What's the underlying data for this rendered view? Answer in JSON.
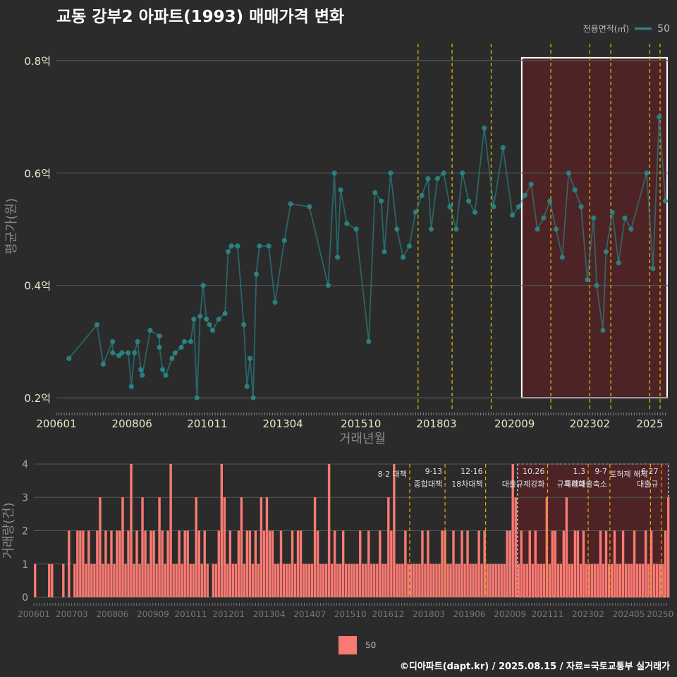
{
  "title": "교동 강부2 아파트(1993) 매매가격 변화",
  "legend": {
    "title": "전용면적(㎡)",
    "value": "50",
    "bar_label": "50"
  },
  "credit": "©디아파트(dapt.kr) / 2025.08.15 / 자료=국토교통부 실거래가",
  "colors": {
    "line": "#2a8c8c",
    "bar": "#f87a72",
    "policy_line": "#e6c300",
    "highlight": "#5a2226"
  },
  "chart_data": [
    {
      "type": "line",
      "ylabel": "평균가(원)",
      "xlabel": "거래년월",
      "x_ticks": [
        "200601",
        "200806",
        "201011",
        "201304",
        "201510",
        "201803",
        "202009",
        "202302",
        "2025"
      ],
      "y_ticks": [
        "0.2억",
        "0.4억",
        "0.6억",
        "0.8억"
      ],
      "ylim": [
        0.18,
        0.83
      ],
      "xlim": [
        2006.0,
        2025.6
      ],
      "grid": true,
      "highlight_range": {
        "x": [
          2020.9,
          2025.6
        ],
        "y": [
          0.2,
          0.805
        ]
      },
      "policy_lines": [
        2017.58,
        2018.67,
        2019.92,
        2021.83,
        2023.08,
        2023.75,
        2025.0,
        2025.33
      ],
      "series": [
        {
          "name": "50",
          "points": [
            [
              2006.4,
              0.27
            ],
            [
              2007.3,
              0.33
            ],
            [
              2007.5,
              0.26
            ],
            [
              2007.8,
              0.3
            ],
            [
              2007.8,
              0.28
            ],
            [
              2008.0,
              0.275
            ],
            [
              2008.1,
              0.28
            ],
            [
              2008.3,
              0.28
            ],
            [
              2008.4,
              0.22
            ],
            [
              2008.5,
              0.28
            ],
            [
              2008.6,
              0.3
            ],
            [
              2008.7,
              0.25
            ],
            [
              2008.75,
              0.24
            ],
            [
              2009.0,
              0.32
            ],
            [
              2009.3,
              0.31
            ],
            [
              2009.3,
              0.29
            ],
            [
              2009.4,
              0.25
            ],
            [
              2009.5,
              0.24
            ],
            [
              2009.7,
              0.27
            ],
            [
              2009.8,
              0.28
            ],
            [
              2010.0,
              0.29
            ],
            [
              2010.1,
              0.3
            ],
            [
              2010.3,
              0.3
            ],
            [
              2010.4,
              0.34
            ],
            [
              2010.5,
              0.2
            ],
            [
              2010.6,
              0.345
            ],
            [
              2010.7,
              0.4
            ],
            [
              2010.8,
              0.34
            ],
            [
              2010.9,
              0.33
            ],
            [
              2011.0,
              0.32
            ],
            [
              2011.2,
              0.34
            ],
            [
              2011.4,
              0.35
            ],
            [
              2011.5,
              0.46
            ],
            [
              2011.6,
              0.47
            ],
            [
              2011.8,
              0.47
            ],
            [
              2012.0,
              0.33
            ],
            [
              2012.1,
              0.22
            ],
            [
              2012.2,
              0.27
            ],
            [
              2012.3,
              0.2
            ],
            [
              2012.4,
              0.42
            ],
            [
              2012.5,
              0.47
            ],
            [
              2012.8,
              0.47
            ],
            [
              2013.0,
              0.37
            ],
            [
              2013.3,
              0.48
            ],
            [
              2013.5,
              0.545
            ],
            [
              2014.1,
              0.54
            ],
            [
              2014.7,
              0.4
            ],
            [
              2014.9,
              0.6
            ],
            [
              2015.0,
              0.45
            ],
            [
              2015.1,
              0.57
            ],
            [
              2015.3,
              0.51
            ],
            [
              2015.6,
              0.5
            ],
            [
              2016.0,
              0.3
            ],
            [
              2016.2,
              0.565
            ],
            [
              2016.4,
              0.55
            ],
            [
              2016.5,
              0.46
            ],
            [
              2016.7,
              0.6
            ],
            [
              2016.9,
              0.5
            ],
            [
              2017.1,
              0.45
            ],
            [
              2017.3,
              0.47
            ],
            [
              2017.5,
              0.53
            ],
            [
              2017.7,
              0.56
            ],
            [
              2017.9,
              0.59
            ],
            [
              2018.0,
              0.5
            ],
            [
              2018.2,
              0.59
            ],
            [
              2018.4,
              0.6
            ],
            [
              2018.6,
              0.54
            ],
            [
              2018.8,
              0.5
            ],
            [
              2019.0,
              0.6
            ],
            [
              2019.2,
              0.55
            ],
            [
              2019.4,
              0.53
            ],
            [
              2019.7,
              0.68
            ],
            [
              2020.0,
              0.54
            ],
            [
              2020.3,
              0.645
            ],
            [
              2020.6,
              0.525
            ],
            [
              2020.8,
              0.54
            ],
            [
              2021.0,
              0.56
            ],
            [
              2021.2,
              0.58
            ],
            [
              2021.4,
              0.5
            ],
            [
              2021.6,
              0.52
            ],
            [
              2021.8,
              0.55
            ],
            [
              2022.0,
              0.5
            ],
            [
              2022.2,
              0.45
            ],
            [
              2022.4,
              0.6
            ],
            [
              2022.6,
              0.57
            ],
            [
              2022.8,
              0.54
            ],
            [
              2023.0,
              0.41
            ],
            [
              2023.2,
              0.52
            ],
            [
              2023.3,
              0.4
            ],
            [
              2023.5,
              0.32
            ],
            [
              2023.6,
              0.46
            ],
            [
              2023.8,
              0.53
            ],
            [
              2024.0,
              0.44
            ],
            [
              2024.2,
              0.52
            ],
            [
              2024.4,
              0.5
            ],
            [
              2024.9,
              0.6
            ],
            [
              2025.1,
              0.43
            ],
            [
              2025.3,
              0.7
            ],
            [
              2025.5,
              0.55
            ]
          ]
        }
      ]
    },
    {
      "type": "bar",
      "ylabel": "거래량(건)",
      "x_ticks": [
        "200601",
        "200703",
        "200806",
        "200909",
        "201011",
        "201201",
        "201304",
        "201407",
        "201510",
        "201612",
        "201803",
        "201906",
        "202009",
        "202111",
        "202302",
        "202405",
        "20250"
      ],
      "y_ticks": [
        "0",
        "1",
        "2",
        "3",
        "4"
      ],
      "ylim": [
        0,
        4
      ],
      "annotations": [
        {
          "x": 2017.58,
          "lines": [
            "8·2 대책"
          ]
        },
        {
          "x": 2018.67,
          "lines": [
            "9·13",
            "종합대책"
          ]
        },
        {
          "x": 2019.92,
          "lines": [
            "12·16",
            "18차대책"
          ]
        },
        {
          "x": 2021.83,
          "lines": [
            "10.26",
            "대출규제강화"
          ]
        },
        {
          "x": 2023.08,
          "lines": [
            "1.3",
            "규제완화"
          ]
        },
        {
          "x": 2023.75,
          "lines": [
            "9·7",
            "특례대출축소"
          ]
        },
        {
          "x": 2025.0,
          "lines": [
            "토허제 해제"
          ]
        },
        {
          "x": 2025.33,
          "lines": [
            "6·27",
            "대출규"
          ]
        }
      ],
      "values": [
        1,
        0,
        0,
        0,
        0,
        1,
        1,
        0,
        0,
        0,
        1,
        0,
        2,
        0,
        1,
        2,
        2,
        2,
        1,
        2,
        1,
        1,
        2,
        3,
        1,
        2,
        1,
        2,
        1,
        2,
        2,
        3,
        1,
        2,
        4,
        1,
        2,
        1,
        3,
        2,
        1,
        2,
        2,
        1,
        3,
        2,
        1,
        2,
        4,
        1,
        1,
        2,
        1,
        2,
        2,
        1,
        1,
        3,
        2,
        1,
        2,
        1,
        0,
        1,
        1,
        2,
        4,
        3,
        1,
        2,
        1,
        1,
        2,
        3,
        1,
        2,
        2,
        1,
        2,
        1,
        3,
        2,
        3,
        2,
        2,
        1,
        1,
        2,
        1,
        1,
        1,
        2,
        1,
        2,
        2,
        1,
        1,
        1,
        1,
        3,
        2,
        1,
        1,
        1,
        4,
        1,
        2,
        1,
        1,
        2,
        1,
        1,
        1,
        1,
        1,
        2,
        1,
        1,
        2,
        1,
        1,
        1,
        2,
        1,
        1,
        3,
        2,
        4,
        1,
        1,
        1,
        2,
        1,
        1,
        1,
        1,
        1,
        2,
        1,
        2,
        1,
        1,
        1,
        1,
        2,
        2,
        1,
        1,
        2,
        1,
        1,
        2,
        1,
        2,
        1,
        1,
        1,
        2,
        1,
        2,
        1,
        1,
        1,
        1,
        1,
        1,
        1,
        2,
        2,
        4,
        3,
        1,
        2,
        1,
        1,
        2,
        1,
        2,
        1,
        1,
        1,
        3,
        1,
        2,
        2,
        1,
        1,
        2,
        3,
        1,
        1,
        2,
        2,
        1,
        2,
        1,
        1,
        1,
        1,
        1,
        2,
        1,
        2,
        1,
        1,
        2,
        1,
        1,
        2,
        1,
        1,
        1,
        2,
        1,
        1,
        1,
        2,
        1,
        2,
        1,
        1,
        1,
        1,
        2,
        3
      ]
    }
  ]
}
